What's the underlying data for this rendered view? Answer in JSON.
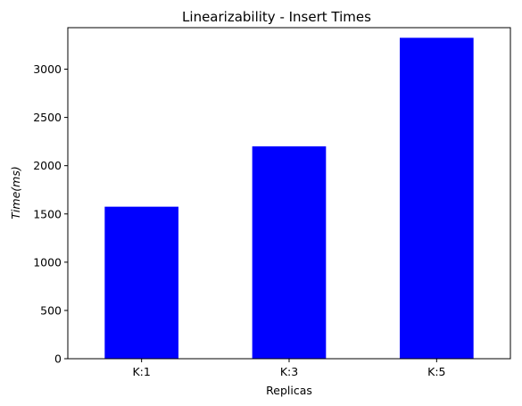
{
  "chart_data": {
    "type": "bar",
    "title": "Linearizability - Insert Times",
    "xlabel": "Replicas",
    "ylabel": "Time(ms)",
    "categories": [
      "K:1",
      "K:3",
      "K:5"
    ],
    "values": [
      1575,
      2200,
      3325
    ],
    "ylim": [
      0,
      3430
    ],
    "yticks": [
      0,
      500,
      1000,
      1500,
      2000,
      2500,
      3000
    ],
    "bar_color": "#0000ff",
    "grid": false,
    "legend": "none"
  }
}
